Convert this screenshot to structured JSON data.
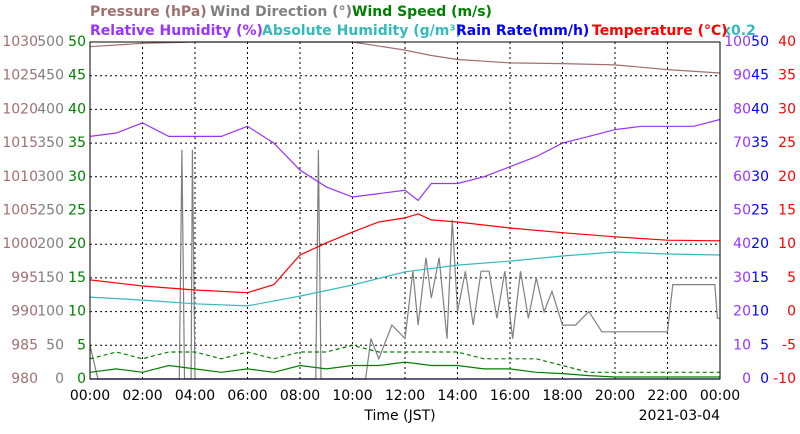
{
  "chart_data": {
    "type": "line",
    "xlabel": "Time (JST)",
    "date": "2021-03-04",
    "axis_note": "x0.2",
    "grid": true,
    "xlim": [
      0,
      24
    ],
    "xticks": [
      {
        "value": 0,
        "label": "00:00"
      },
      {
        "value": 2,
        "label": "02:00"
      },
      {
        "value": 4,
        "label": "04:00"
      },
      {
        "value": 6,
        "label": "06:00"
      },
      {
        "value": 8,
        "label": "08:00"
      },
      {
        "value": 10,
        "label": "10:00"
      },
      {
        "value": 12,
        "label": "12:00"
      },
      {
        "value": 14,
        "label": "14:00"
      },
      {
        "value": 16,
        "label": "16:00"
      },
      {
        "value": 18,
        "label": "18:00"
      },
      {
        "value": 20,
        "label": "20:00"
      },
      {
        "value": 22,
        "label": "22:00"
      },
      {
        "value": 24,
        "label": "00:00"
      }
    ],
    "series": [
      {
        "name": "Pressure (hPa)",
        "color": "#a07070",
        "side": "left",
        "ylim": [
          980,
          1030
        ],
        "yticks": [
          980,
          985,
          990,
          995,
          1000,
          1005,
          1010,
          1015,
          1020,
          1025,
          1030
        ],
        "x": [
          0,
          2,
          4,
          6,
          8,
          10,
          12,
          13,
          14,
          16,
          18,
          20,
          22,
          24
        ],
        "values": [
          1029.3,
          1029.8,
          1030,
          1030,
          1030,
          1030,
          1028.8,
          1028,
          1027.4,
          1026.9,
          1026.8,
          1026.6,
          1025.9,
          1025.4
        ]
      },
      {
        "name": "Wind Direction (°)",
        "color": "#808080",
        "side": "left",
        "ylim": [
          0,
          500
        ],
        "yticks": [
          0,
          50,
          100,
          150,
          200,
          250,
          300,
          350,
          400,
          450,
          500
        ],
        "x": [
          0,
          0.3,
          3.4,
          3.5,
          3.6,
          3.85,
          3.9,
          4.0,
          8.6,
          8.7,
          8.8,
          10.5,
          10.7,
          11,
          11.5,
          12,
          12.3,
          12.5,
          12.8,
          13,
          13.3,
          13.6,
          13.8,
          14,
          14.3,
          14.6,
          14.9,
          15.2,
          15.5,
          15.8,
          16.1,
          16.4,
          16.7,
          17,
          17.3,
          17.6,
          18,
          18.5,
          19,
          19.5,
          20,
          22,
          22.2,
          23.8,
          23.9,
          24
        ],
        "values": [
          50,
          0,
          0,
          340,
          0,
          0,
          340,
          0,
          0,
          340,
          0,
          0,
          60,
          30,
          80,
          60,
          160,
          80,
          180,
          120,
          180,
          60,
          236,
          100,
          160,
          80,
          160,
          160,
          90,
          160,
          60,
          160,
          90,
          150,
          100,
          130,
          80,
          80,
          100,
          70,
          70,
          70,
          140,
          140,
          90,
          90
        ]
      },
      {
        "name": "Wind Speed (m/s)",
        "color": "#008000",
        "side": "left",
        "ylim": [
          0,
          50
        ],
        "yticks": [
          0,
          5,
          10,
          15,
          20,
          25,
          30,
          35,
          40,
          45,
          50
        ],
        "x": [
          0,
          1,
          2,
          3,
          4,
          5,
          6,
          7,
          8,
          9,
          10,
          11,
          12,
          13,
          14,
          15,
          16,
          17,
          18,
          19,
          20,
          21,
          22,
          23,
          24
        ],
        "values": [
          1,
          1.5,
          1,
          2,
          1.5,
          1,
          1.5,
          1,
          2,
          1.5,
          2,
          2,
          2.5,
          2,
          2,
          1.5,
          1.5,
          1,
          0.8,
          0.5,
          0.3,
          0.3,
          0.3,
          0.3,
          0.3
        ]
      },
      {
        "name": "Relative Humidity (%)",
        "color": "#9933ff",
        "side": "right",
        "ylim": [
          0,
          100
        ],
        "yticks": [
          0,
          10,
          20,
          30,
          40,
          50,
          60,
          70,
          80,
          90,
          100
        ],
        "x": [
          0,
          1,
          2,
          3,
          4,
          5,
          6,
          7,
          8,
          9,
          10,
          11,
          12,
          12.5,
          13,
          14,
          15,
          16,
          17,
          18,
          19,
          20,
          21,
          22,
          23,
          24
        ],
        "values": [
          72,
          73,
          76,
          72,
          72,
          72,
          75,
          70,
          62,
          57,
          54,
          55,
          56,
          53,
          58,
          58,
          60,
          63,
          66,
          70,
          72,
          74,
          75,
          75,
          75,
          77
        ]
      },
      {
        "name": "Absolute Humidity (g/m³)",
        "color": "#33bbbb",
        "ylim": [
          0,
          100
        ],
        "x": [
          0,
          2,
          4,
          6,
          8,
          10,
          12,
          14,
          16,
          18,
          20,
          22,
          24
        ],
        "values": [
          24.3,
          23.4,
          22.3,
          21.7,
          24.6,
          27.9,
          31.8,
          33.8,
          35,
          36.5,
          37.7,
          37.1,
          36.8
        ]
      },
      {
        "name": "Rain Rate(mm/h)",
        "color": "#0000ff",
        "side": "right",
        "ylim": [
          0,
          50
        ],
        "yticks": [
          0,
          5,
          10,
          15,
          20,
          25,
          30,
          35,
          40,
          45,
          50
        ],
        "x": [
          0,
          24
        ],
        "values": [
          0,
          0
        ]
      },
      {
        "name": "Temperature (°C)",
        "color": "#ff0000",
        "side": "right",
        "ylim": [
          -10,
          40
        ],
        "yticks": [
          -10,
          -5,
          0,
          5,
          10,
          15,
          20,
          25,
          30,
          35,
          40
        ],
        "x": [
          0,
          2,
          4,
          6,
          7,
          8,
          9,
          10,
          11,
          12,
          12.5,
          13,
          14,
          16,
          18,
          20,
          22,
          24
        ],
        "values": [
          4.7,
          3.8,
          3.2,
          2.8,
          4,
          8.4,
          10.2,
          11.8,
          13.3,
          13.9,
          14.5,
          13.6,
          13.3,
          12.4,
          11.7,
          11.1,
          10.6,
          10.5
        ]
      },
      {
        "color": "#008000",
        "dash": true,
        "ylim": [
          0,
          50
        ],
        "x": [
          0,
          1,
          2,
          3,
          4,
          5,
          6,
          7,
          8,
          9,
          10,
          11,
          12,
          13,
          14,
          15,
          16,
          17,
          18,
          19,
          20,
          21,
          22,
          23,
          24
        ],
        "values": [
          3,
          4,
          3,
          4,
          4,
          3,
          4,
          3,
          4,
          4,
          5,
          4,
          4,
          4,
          4,
          3,
          3,
          3,
          2,
          1,
          1,
          1,
          1,
          1,
          1
        ]
      }
    ]
  }
}
